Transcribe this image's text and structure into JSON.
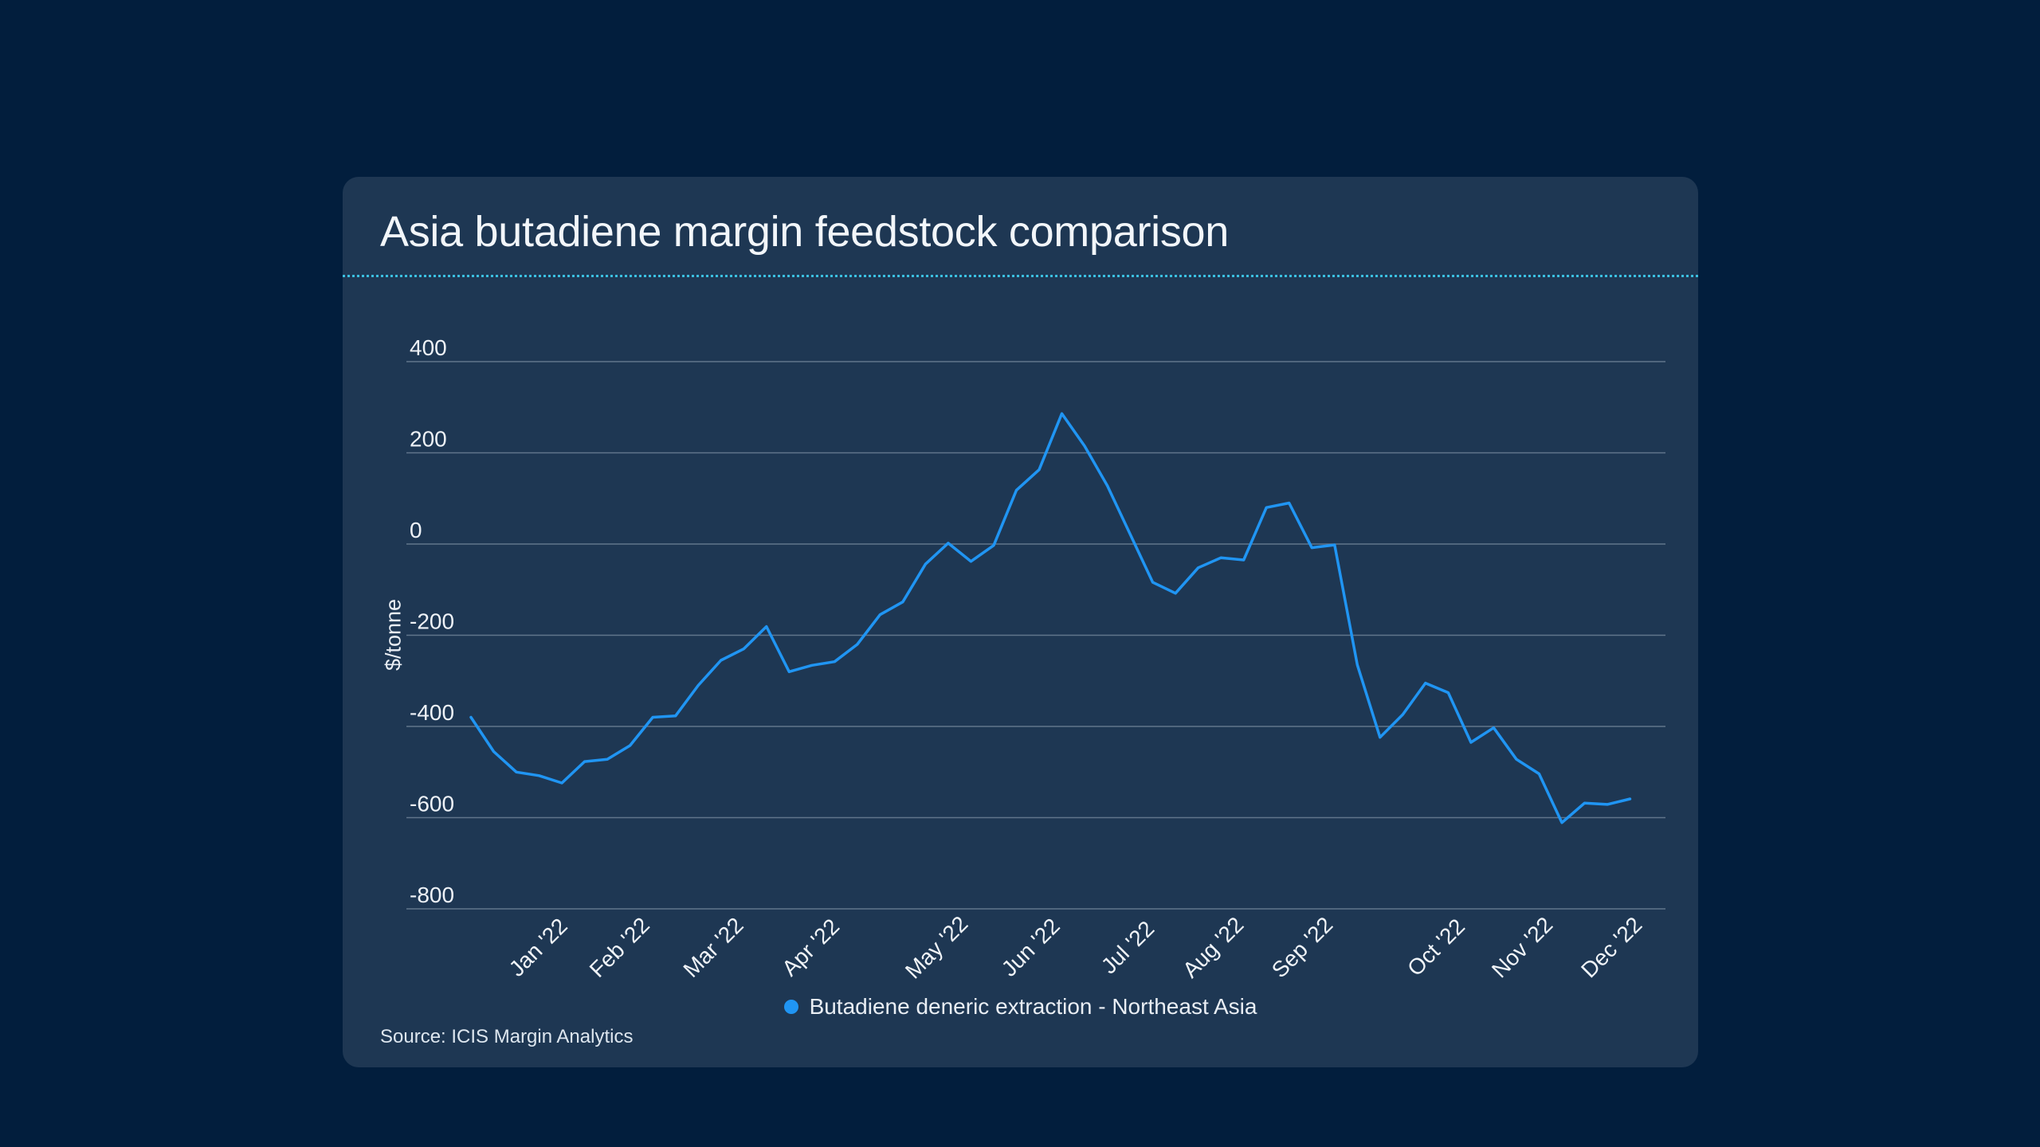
{
  "page": {
    "background": "#021e3d"
  },
  "card": {
    "background": "#1e3753",
    "title": "Asia butadiene margin feedstock comparison",
    "divider_color": "#3bbfe0",
    "source": "Source: ICIS Margin Analytics"
  },
  "chart_data": {
    "type": "line",
    "title": "Asia butadiene margin feedstock comparison",
    "xlabel": "",
    "ylabel": "$/tonne",
    "ylim": [
      -800,
      400
    ],
    "yticks": [
      400,
      200,
      0,
      -200,
      -400,
      -600,
      -800
    ],
    "grid": "horizontal-only",
    "x_axis": {
      "unit": "weekly observations, Dec 2021 - Dec 2022",
      "tick_labels": [
        "Jan '22",
        "Feb '22",
        "Mar '22",
        "Apr '22",
        "May '22",
        "Jun '22",
        "Jul '22",
        "Aug '22",
        "Sep '22",
        "Oct '22",
        "Nov '22",
        "Dec '22"
      ],
      "tick_week_positions": [
        3.19,
        6.77,
        10.9,
        15.18,
        20.72,
        24.86,
        29.13,
        32.89,
        36.81,
        42.7,
        46.49,
        50.42
      ]
    },
    "legend": {
      "position": "bottom-center",
      "label": "Butadiene deneric extraction - Northeast Asia"
    },
    "series": [
      {
        "name": "Butadiene deneric extraction - Northeast Asia",
        "color": "#2095f3",
        "values": [
          -380,
          -455,
          -500,
          -508,
          -524,
          -477,
          -472,
          -442,
          -380,
          -377,
          -310,
          -255,
          -230,
          -181,
          -280,
          -266,
          -258,
          -220,
          -155,
          -127,
          -44,
          2,
          -38,
          -3,
          118,
          163,
          286,
          215,
          128,
          22,
          -84,
          -108,
          -52,
          -30,
          -35,
          80,
          90,
          -8,
          -2,
          -265,
          -424,
          -374,
          -305,
          -326,
          -435,
          -403,
          -472,
          -504,
          -611,
          -568,
          -571,
          -559
        ]
      }
    ]
  }
}
